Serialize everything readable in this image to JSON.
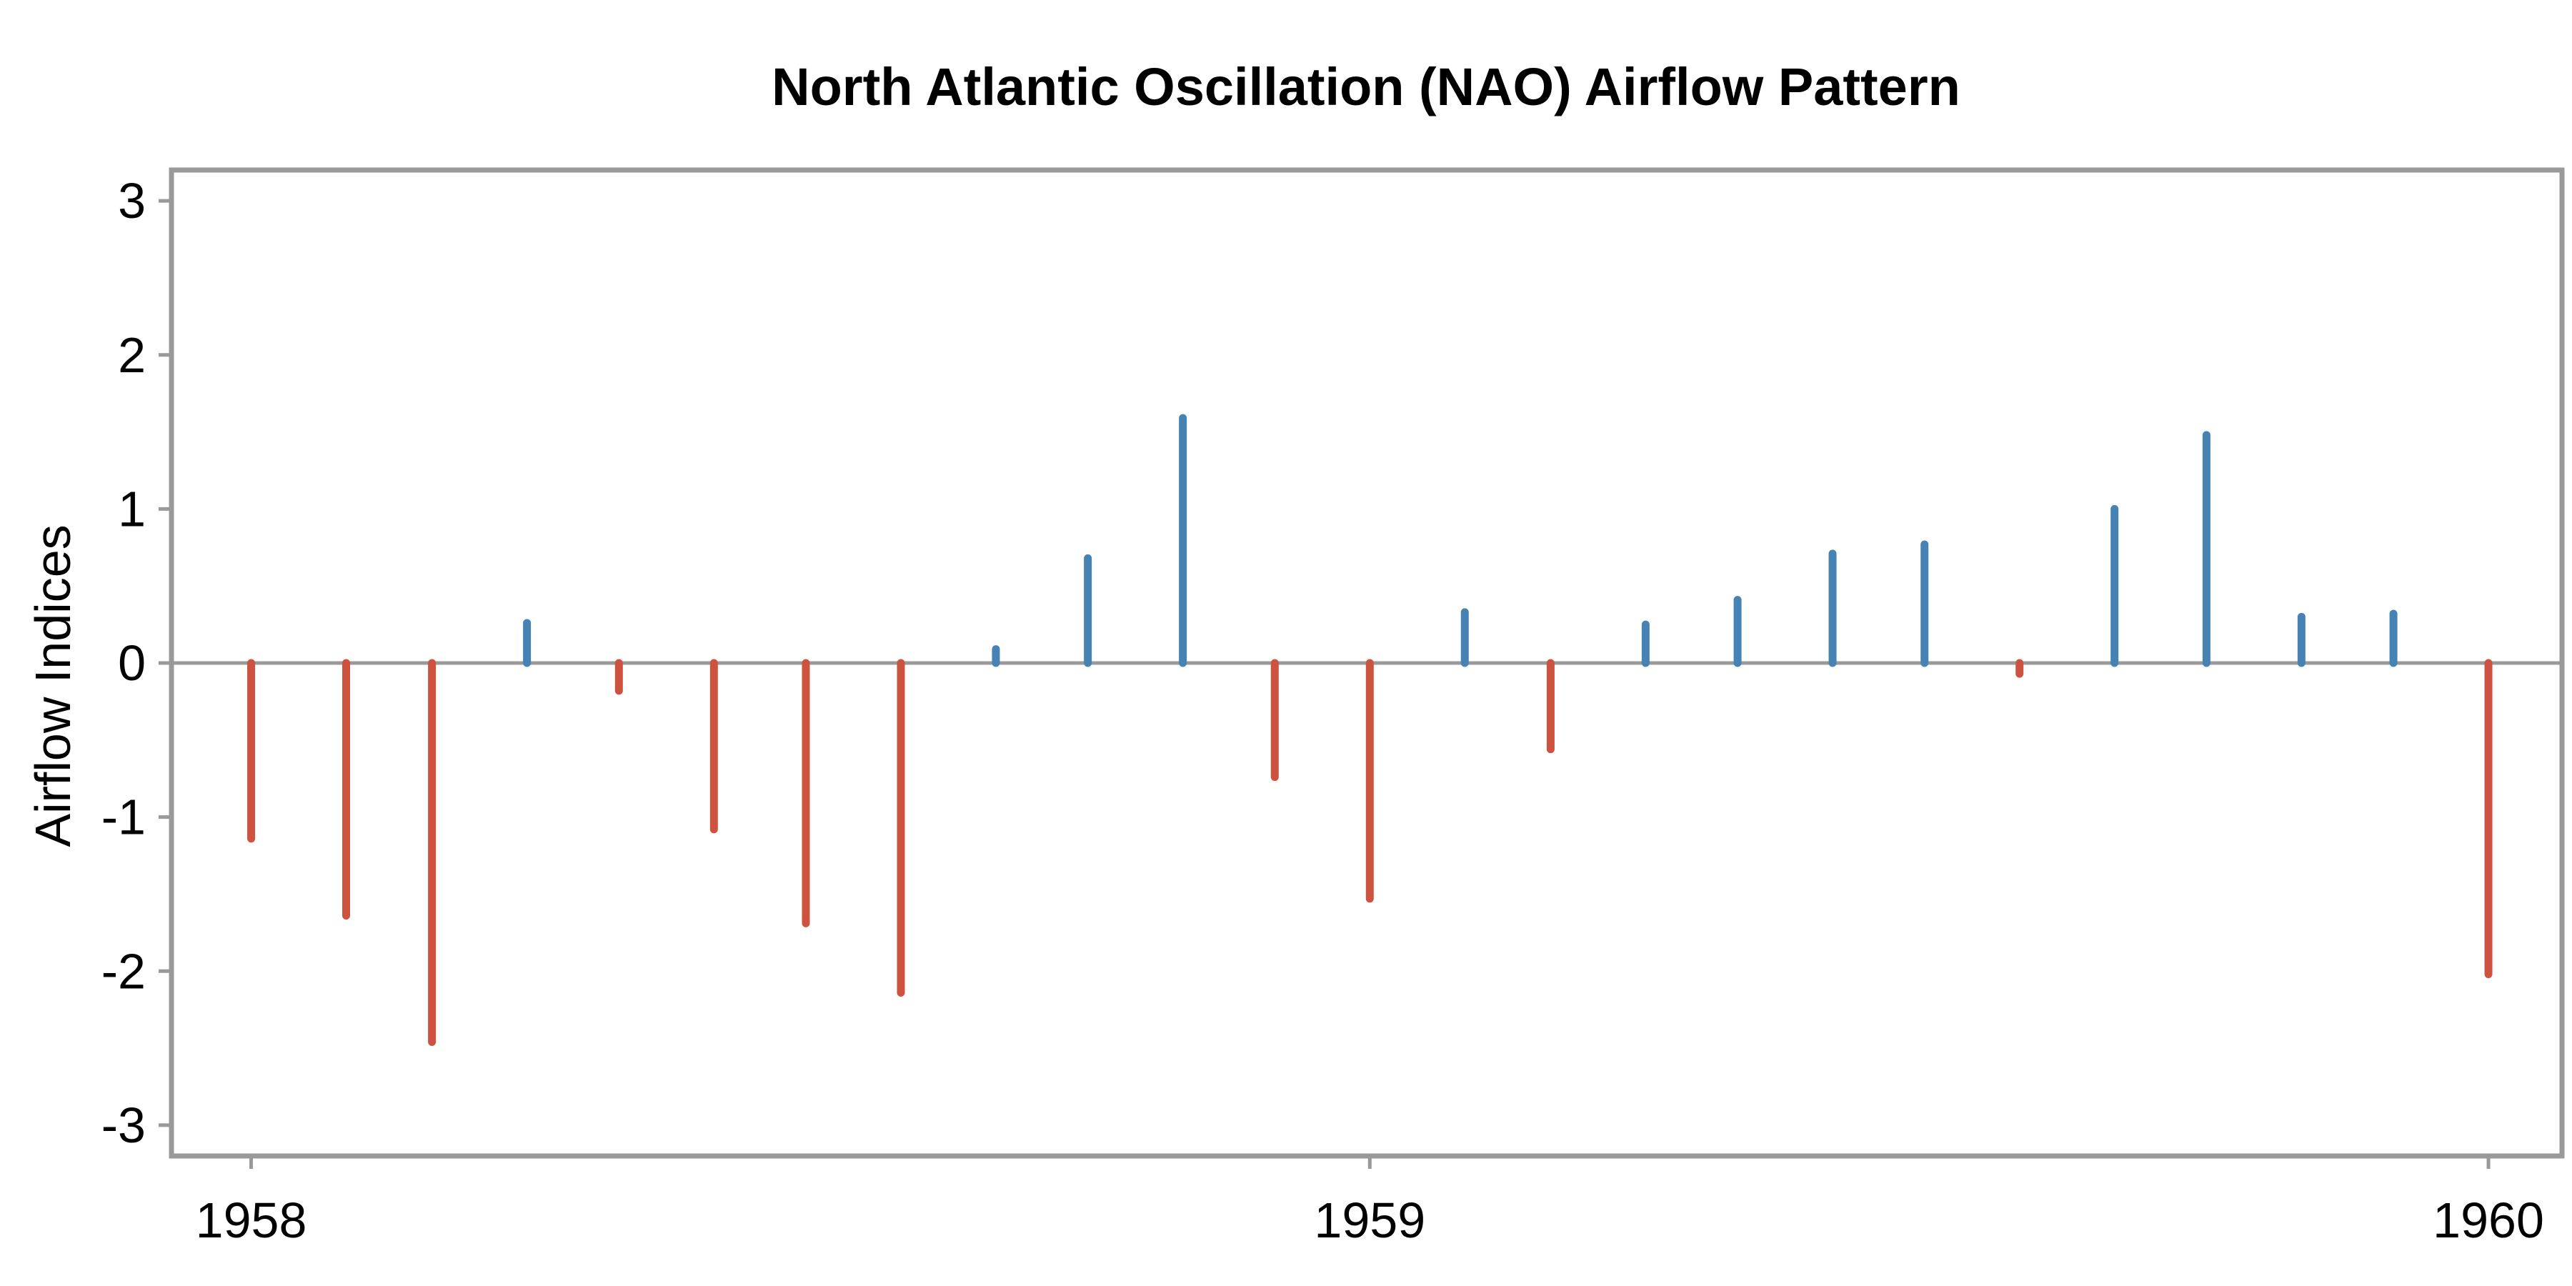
{
  "chart_data": {
    "type": "bar",
    "title": "North Atlantic Oscillation (NAO) Airflow Pattern",
    "xlabel": "",
    "ylabel": "Airflow Indices",
    "ylim": [
      -3.2,
      3.2
    ],
    "xlim": [
      "1957-12-06",
      "1960-01-25"
    ],
    "y_ticks": [
      3,
      2,
      1,
      0,
      -1,
      -2,
      -3
    ],
    "x_ticks": [
      {
        "date": "1958-01-01",
        "label": "1958"
      },
      {
        "date": "1959-01-01",
        "label": "1959"
      },
      {
        "date": "1960-01-01",
        "label": "1960"
      }
    ],
    "grid": false,
    "legend": "none",
    "colors": {
      "positive": "#4682b4",
      "negative": "#cd5340",
      "zero_line": "#999999",
      "frame": "#999999"
    },
    "x": [
      "1958-01",
      "1958-02",
      "1958-03",
      "1958-04",
      "1958-05",
      "1958-06",
      "1958-07",
      "1958-08",
      "1958-09",
      "1958-10",
      "1958-11",
      "1958-12",
      "1959-01",
      "1959-02",
      "1959-03",
      "1959-04",
      "1959-05",
      "1959-06",
      "1959-07",
      "1959-08",
      "1959-09",
      "1959-10",
      "1959-11",
      "1959-12",
      "1960-01"
    ],
    "values": [
      -1.14,
      -1.64,
      -2.46,
      0.26,
      -0.18,
      -1.08,
      -1.69,
      -2.14,
      0.09,
      0.68,
      1.59,
      -0.74,
      -1.53,
      0.33,
      -0.56,
      0.25,
      0.41,
      0.71,
      0.77,
      -0.07,
      1.0,
      1.48,
      0.3,
      0.32,
      -2.02
    ]
  }
}
